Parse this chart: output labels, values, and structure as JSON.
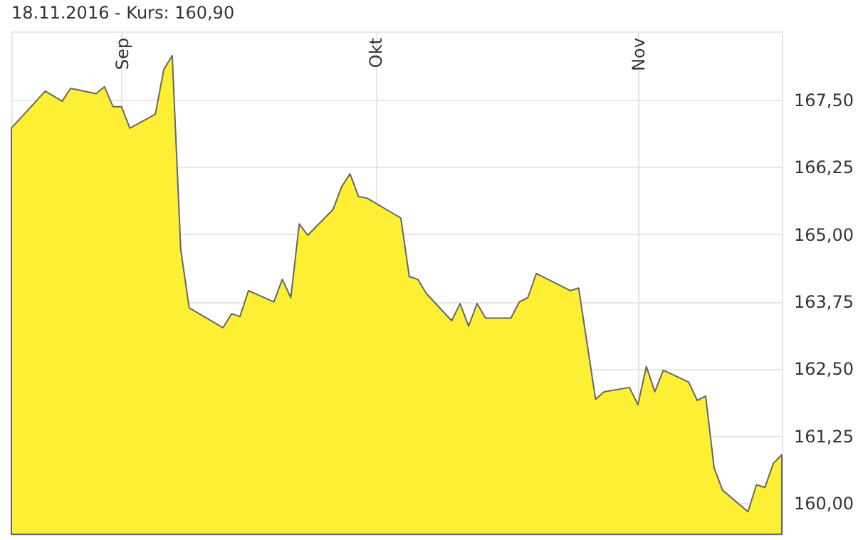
{
  "chart_data": {
    "type": "area",
    "title": "18.11.2016 - Kurs: 160,90",
    "x": [
      "2016-08-19",
      "2016-08-23",
      "2016-08-25",
      "2016-08-26",
      "2016-08-29",
      "2016-08-30",
      "2016-08-31",
      "2016-09-01",
      "2016-09-02",
      "2016-09-05",
      "2016-09-06",
      "2016-09-07",
      "2016-09-08",
      "2016-09-09",
      "2016-09-13",
      "2016-09-14",
      "2016-09-15",
      "2016-09-16",
      "2016-09-19",
      "2016-09-20",
      "2016-09-21",
      "2016-09-22",
      "2016-09-23",
      "2016-09-26",
      "2016-09-27",
      "2016-09-28",
      "2016-09-29",
      "2016-09-30",
      "2016-10-04",
      "2016-10-05",
      "2016-10-06",
      "2016-10-07",
      "2016-10-10",
      "2016-10-11",
      "2016-10-12",
      "2016-10-13",
      "2016-10-14",
      "2016-10-17",
      "2016-10-18",
      "2016-10-19",
      "2016-10-20",
      "2016-10-21",
      "2016-10-24",
      "2016-10-25",
      "2016-10-27",
      "2016-10-28",
      "2016-10-31",
      "2016-11-01",
      "2016-11-02",
      "2016-11-03",
      "2016-11-04",
      "2016-11-07",
      "2016-11-08",
      "2016-11-09",
      "2016-11-10",
      "2016-11-11",
      "2016-11-14",
      "2016-11-15",
      "2016-11-16",
      "2016-11-17",
      "2016-11-18"
    ],
    "series": [
      {
        "color": "#fdef33",
        "values": [
          166.97,
          167.66,
          167.47,
          167.71,
          167.61,
          167.74,
          167.37,
          167.37,
          166.97,
          167.23,
          168.06,
          168.32,
          164.72,
          163.63,
          163.26,
          163.52,
          163.47,
          163.95,
          163.74,
          164.16,
          163.82,
          165.19,
          164.98,
          165.46,
          165.88,
          166.12,
          165.7,
          165.67,
          165.3,
          164.21,
          164.16,
          163.9,
          163.39,
          163.71,
          163.29,
          163.71,
          163.44,
          163.44,
          163.74,
          163.82,
          164.27,
          164.19,
          163.95,
          164.0,
          161.93,
          162.07,
          162.15,
          161.83,
          162.54,
          162.07,
          162.47,
          162.25,
          161.91,
          161.99,
          160.66,
          160.24,
          159.84,
          160.34,
          160.29,
          160.74,
          160.9
        ]
      }
    ],
    "xlim": [
      "2016-08-19",
      "2016-11-18"
    ],
    "xticks": [
      {
        "value": "2016-09-01",
        "label": "Sep"
      },
      {
        "value": "2016-10-01",
        "label": "Okt"
      },
      {
        "value": "2016-11-01",
        "label": "Nov"
      }
    ],
    "ylim": [
      159.42,
      168.77
    ],
    "yticks": [
      {
        "value": 160,
        "label": "160,00"
      },
      {
        "value": 161.25,
        "label": "161,25"
      },
      {
        "value": 162.5,
        "label": "162,50"
      },
      {
        "value": 163.75,
        "label": "163,75"
      },
      {
        "value": 165,
        "label": "165,00"
      },
      {
        "value": 166.25,
        "label": "166,25"
      },
      {
        "value": 167.5,
        "label": "167,50"
      }
    ],
    "grid": true
  }
}
